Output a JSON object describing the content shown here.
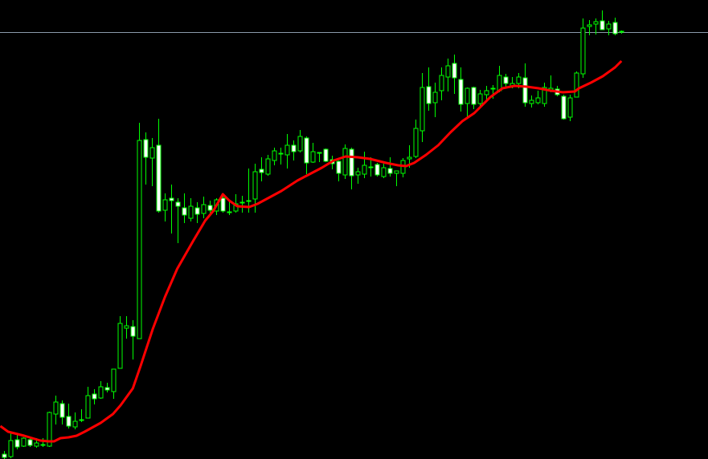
{
  "chart_data": {
    "type": "candlestick",
    "title": "",
    "xlabel": "",
    "ylabel": "",
    "ylim": [
      0,
      572
    ],
    "grid": false,
    "legend": "none",
    "colors": {
      "background": "#000000",
      "candle_outline": "#00ff00",
      "bull_body": "#000000",
      "bear_body": "#ffffff",
      "moving_average": "#ff0000",
      "price_line": "#8a9aab"
    },
    "ohlc_fields": [
      "open",
      "high",
      "low",
      "close"
    ],
    "candles": [
      [
        6,
        10,
        0,
        2
      ],
      [
        3,
        32,
        1,
        23
      ],
      [
        24,
        30,
        12,
        15
      ],
      [
        16,
        27,
        15,
        26
      ],
      [
        24,
        27,
        15,
        17
      ],
      [
        16,
        26,
        14,
        20
      ],
      [
        17,
        26,
        15,
        18
      ],
      [
        16,
        59,
        15,
        58
      ],
      [
        56,
        79,
        43,
        71
      ],
      [
        69,
        73,
        43,
        52
      ],
      [
        53,
        69,
        38,
        41
      ],
      [
        40,
        58,
        37,
        47
      ],
      [
        48,
        62,
        46,
        49
      ],
      [
        51,
        90,
        51,
        79
      ],
      [
        81,
        87,
        68,
        75
      ],
      [
        76,
        97,
        75,
        90
      ],
      [
        89,
        95,
        83,
        86
      ],
      [
        84,
        112,
        75,
        112
      ],
      [
        113,
        178,
        113,
        169
      ],
      [
        163,
        178,
        150,
        166
      ],
      [
        165,
        173,
        124,
        153
      ],
      [
        150,
        419,
        150,
        397
      ],
      [
        398,
        407,
        342,
        376
      ],
      [
        375,
        400,
        340,
        388
      ],
      [
        391,
        424,
        307,
        309
      ],
      [
        310,
        331,
        296,
        323
      ],
      [
        325,
        342,
        281,
        322
      ],
      [
        320,
        325,
        269,
        315
      ],
      [
        313,
        331,
        294,
        304
      ],
      [
        300,
        325,
        296,
        315
      ],
      [
        313,
        320,
        294,
        305
      ],
      [
        306,
        327,
        300,
        317
      ],
      [
        316,
        322,
        307,
        310
      ],
      [
        309,
        325,
        304,
        323
      ],
      [
        325,
        331,
        307,
        309
      ],
      [
        308,
        323,
        304,
        308
      ],
      [
        309,
        330,
        307,
        318
      ],
      [
        320,
        328,
        307,
        320
      ],
      [
        322,
        362,
        307,
        322
      ],
      [
        324,
        368,
        307,
        358
      ],
      [
        361,
        376,
        346,
        357
      ],
      [
        355,
        379,
        353,
        374
      ],
      [
        372,
        388,
        366,
        384
      ],
      [
        381,
        388,
        367,
        381
      ],
      [
        379,
        405,
        362,
        391
      ],
      [
        391,
        397,
        372,
        383
      ],
      [
        384,
        410,
        382,
        402
      ],
      [
        400,
        402,
        355,
        369
      ],
      [
        370,
        394,
        369,
        383
      ],
      [
        382,
        382,
        370,
        382
      ],
      [
        386,
        387,
        370,
        371
      ],
      [
        373,
        378,
        361,
        368
      ],
      [
        371,
        372,
        346,
        356
      ],
      [
        354,
        392,
        349,
        387
      ],
      [
        386,
        388,
        336,
        353
      ],
      [
        354,
        363,
        343,
        358
      ],
      [
        355,
        383,
        350,
        366
      ],
      [
        364,
        376,
        352,
        364
      ],
      [
        367,
        369,
        352,
        354
      ],
      [
        352,
        368,
        350,
        363
      ],
      [
        362,
        376,
        352,
        356
      ],
      [
        356,
        359,
        340,
        359
      ],
      [
        356,
        375,
        351,
        372
      ],
      [
        374,
        391,
        363,
        376
      ],
      [
        377,
        423,
        375,
        412
      ],
      [
        409,
        481,
        395,
        463
      ],
      [
        464,
        488,
        434,
        443
      ],
      [
        444,
        469,
        426,
        457
      ],
      [
        459,
        488,
        447,
        478
      ],
      [
        476,
        499,
        458,
        490
      ],
      [
        493,
        504,
        455,
        475
      ],
      [
        473,
        488,
        433,
        442
      ],
      [
        443,
        463,
        424,
        462
      ],
      [
        463,
        464,
        436,
        442
      ],
      [
        443,
        460,
        439,
        455
      ],
      [
        454,
        465,
        448,
        459
      ],
      [
        462,
        466,
        449,
        462
      ],
      [
        459,
        490,
        457,
        478
      ],
      [
        476,
        480,
        464,
        468
      ],
      [
        465,
        476,
        462,
        468
      ],
      [
        468,
        481,
        462,
        476
      ],
      [
        475,
        493,
        439,
        444
      ],
      [
        443,
        453,
        438,
        447
      ],
      [
        444,
        459,
        442,
        450
      ],
      [
        443,
        469,
        439,
        463
      ],
      [
        460,
        478,
        457,
        462
      ],
      [
        461,
        465,
        452,
        454
      ],
      [
        452,
        454,
        423,
        424
      ],
      [
        426,
        454,
        421,
        450
      ],
      [
        451,
        483,
        451,
        481
      ],
      [
        480,
        549,
        475,
        537
      ],
      [
        539,
        547,
        528,
        541
      ],
      [
        542,
        549,
        529,
        545
      ],
      [
        546,
        559,
        535,
        535
      ],
      [
        536,
        546,
        528,
        542
      ],
      [
        544,
        550,
        528,
        530
      ],
      [
        532,
        534,
        530,
        533
      ]
    ],
    "moving_average": [
      [
        -0.6,
        41
      ],
      [
        0.6,
        34
      ],
      [
        3.1,
        29
      ],
      [
        5.6,
        23
      ],
      [
        6.9,
        22
      ],
      [
        7.75,
        22
      ],
      [
        8.75,
        26
      ],
      [
        10,
        27
      ],
      [
        11.25,
        29
      ],
      [
        12.5,
        34
      ],
      [
        15,
        45
      ],
      [
        16.9,
        56
      ],
      [
        18.1,
        67
      ],
      [
        20,
        88
      ],
      [
        21.25,
        117
      ],
      [
        23.1,
        162
      ],
      [
        25,
        202
      ],
      [
        26.9,
        237
      ],
      [
        29.4,
        272
      ],
      [
        31.25,
        297
      ],
      [
        32.5,
        309
      ],
      [
        34,
        330
      ],
      [
        35,
        322
      ],
      [
        36.25,
        315
      ],
      [
        38.1,
        314
      ],
      [
        39.4,
        318
      ],
      [
        41.25,
        326
      ],
      [
        43.1,
        334
      ],
      [
        45.6,
        347
      ],
      [
        47.5,
        355
      ],
      [
        49.4,
        363
      ],
      [
        51.25,
        372
      ],
      [
        53.1,
        377
      ],
      [
        55,
        376
      ],
      [
        56.9,
        374
      ],
      [
        59.4,
        369
      ],
      [
        61.25,
        366
      ],
      [
        62.5,
        365
      ],
      [
        63.75,
        369
      ],
      [
        65.6,
        379
      ],
      [
        67.5,
        391
      ],
      [
        69.4,
        407
      ],
      [
        71.25,
        421
      ],
      [
        73.1,
        431
      ],
      [
        75.6,
        451
      ],
      [
        77.5,
        462
      ],
      [
        79.4,
        465
      ],
      [
        81.25,
        464
      ],
      [
        83.1,
        462
      ],
      [
        85,
        459
      ],
      [
        86.9,
        457
      ],
      [
        88.75,
        458
      ],
      [
        89.4,
        462
      ],
      [
        91.25,
        469
      ],
      [
        93.1,
        477
      ],
      [
        95,
        488
      ],
      [
        96,
        496
      ]
    ],
    "price_line": 532
  }
}
